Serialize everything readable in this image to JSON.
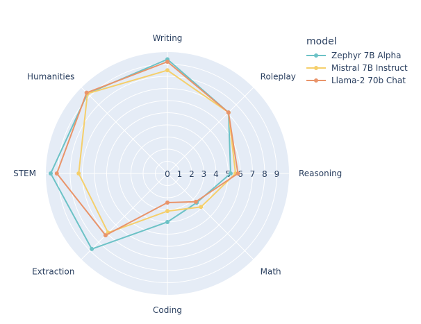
{
  "chart_data": {
    "type": "radar",
    "axes": [
      "Writing",
      "Roleplay",
      "Reasoning",
      "Math",
      "Coding",
      "Extraction",
      "STEM",
      "Humanities"
    ],
    "radial_ticks": [
      "0",
      "1",
      "2",
      "3",
      "4",
      "5",
      "6",
      "7",
      "8",
      "9"
    ],
    "rmax": 10,
    "legend_title": "model",
    "legend_position": "top-right",
    "background_color": "#e5ecf6",
    "grid_color": "#ffffff",
    "series": [
      {
        "name": "Zephyr 7B Alpha",
        "color": "#6cc2c6",
        "values": [
          9.4,
          7.1,
          5.2,
          3.4,
          4.0,
          8.8,
          9.6,
          9.3
        ]
      },
      {
        "name": "Mistral 7B Instruct",
        "color": "#f5cf6b",
        "values": [
          8.5,
          7.1,
          5.6,
          3.9,
          3.1,
          6.9,
          7.3,
          9.3
        ]
      },
      {
        "name": "Llama-2 70b Chat",
        "color": "#e9946a",
        "values": [
          9.2,
          7.1,
          5.8,
          3.3,
          2.4,
          7.2,
          9.1,
          9.4
        ]
      }
    ]
  }
}
